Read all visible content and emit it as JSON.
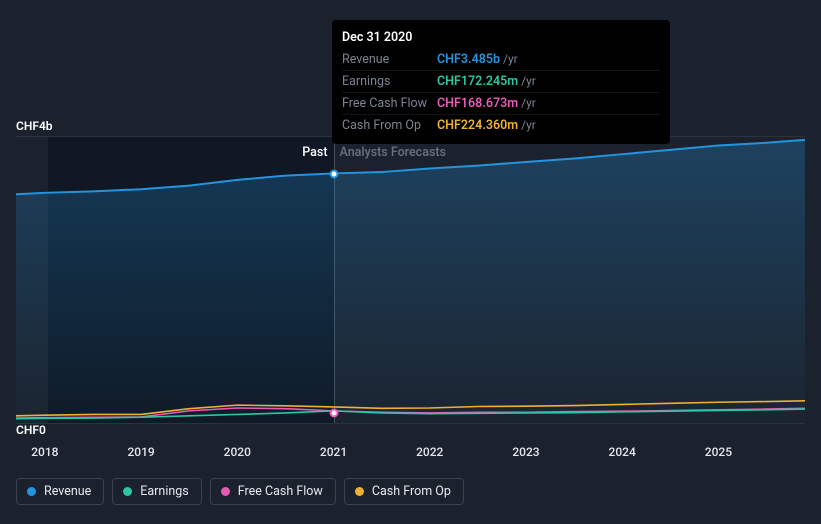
{
  "background_color": "#1b222d",
  "tooltip": {
    "date": "Dec 31 2020",
    "rows": [
      {
        "label": "Revenue",
        "value": "CHF3.485b",
        "unit": "/yr",
        "color": "#2394df"
      },
      {
        "label": "Earnings",
        "value": "CHF172.245m",
        "unit": "/yr",
        "color": "#2dc6a3"
      },
      {
        "label": "Free Cash Flow",
        "value": "CHF168.673m",
        "unit": "/yr",
        "color": "#e85ab8"
      },
      {
        "label": "Cash From Op",
        "value": "CHF224.360m",
        "unit": "/yr",
        "color": "#eeb133"
      }
    ]
  },
  "chart": {
    "type": "area-line",
    "background_color": "#1b222d",
    "past_shade_color": "#0f1824",
    "grid_color": "rgba(255,255,255,0.08)",
    "y_top_label": "CHF4b",
    "y_bottom_label": "CHF0",
    "past_label": "Past",
    "future_label": "Analysts Forecasts",
    "divider_year": 2021,
    "x_ticks": [
      2018,
      2019,
      2020,
      2021,
      2022,
      2023,
      2024,
      2025
    ],
    "x_domain": [
      2017.7,
      2025.9
    ],
    "y_domain": [
      0,
      4000
    ],
    "series": [
      {
        "name": "Revenue",
        "color": "#2394df",
        "fill": true,
        "width": 2,
        "points": [
          [
            2017.7,
            3200
          ],
          [
            2018,
            3220
          ],
          [
            2018.5,
            3240
          ],
          [
            2019,
            3270
          ],
          [
            2019.5,
            3320
          ],
          [
            2020,
            3400
          ],
          [
            2020.5,
            3460
          ],
          [
            2021,
            3490
          ],
          [
            2021.5,
            3510
          ],
          [
            2022,
            3560
          ],
          [
            2022.5,
            3600
          ],
          [
            2023,
            3650
          ],
          [
            2023.5,
            3700
          ],
          [
            2024,
            3760
          ],
          [
            2024.5,
            3820
          ],
          [
            2025,
            3880
          ],
          [
            2025.5,
            3920
          ],
          [
            2025.9,
            3960
          ]
        ]
      },
      {
        "name": "Cash From Op",
        "color": "#eeb133",
        "fill": false,
        "width": 1.6,
        "points": [
          [
            2017.7,
            100
          ],
          [
            2018,
            110
          ],
          [
            2018.5,
            120
          ],
          [
            2019,
            120
          ],
          [
            2019.5,
            200
          ],
          [
            2020,
            250
          ],
          [
            2020.5,
            240
          ],
          [
            2021,
            225
          ],
          [
            2021.5,
            205
          ],
          [
            2022,
            210
          ],
          [
            2022.5,
            230
          ],
          [
            2023,
            235
          ],
          [
            2023.5,
            245
          ],
          [
            2024,
            260
          ],
          [
            2024.5,
            275
          ],
          [
            2025,
            290
          ],
          [
            2025.5,
            300
          ],
          [
            2025.9,
            310
          ]
        ]
      },
      {
        "name": "Free Cash Flow",
        "color": "#e85ab8",
        "fill": false,
        "width": 1.6,
        "points": [
          [
            2017.7,
            70
          ],
          [
            2018,
            75
          ],
          [
            2018.5,
            80
          ],
          [
            2019,
            85
          ],
          [
            2019.5,
            170
          ],
          [
            2020,
            210
          ],
          [
            2020.5,
            200
          ],
          [
            2021,
            170
          ],
          [
            2021.5,
            150
          ],
          [
            2022,
            140
          ],
          [
            2022.5,
            150
          ],
          [
            2023,
            150
          ],
          [
            2023.5,
            160
          ],
          [
            2024,
            165
          ],
          [
            2024.5,
            175
          ],
          [
            2025,
            185
          ],
          [
            2025.5,
            195
          ],
          [
            2025.9,
            205
          ]
        ]
      },
      {
        "name": "Earnings",
        "color": "#2dc6a3",
        "fill": false,
        "width": 1.6,
        "points": [
          [
            2017.7,
            60
          ],
          [
            2018,
            65
          ],
          [
            2018.5,
            70
          ],
          [
            2019,
            80
          ],
          [
            2019.5,
            100
          ],
          [
            2020,
            120
          ],
          [
            2020.5,
            140
          ],
          [
            2021,
            170
          ],
          [
            2021.5,
            140
          ],
          [
            2022,
            130
          ],
          [
            2022.5,
            135
          ],
          [
            2023,
            140
          ],
          [
            2023.5,
            145
          ],
          [
            2024,
            155
          ],
          [
            2024.5,
            165
          ],
          [
            2025,
            175
          ],
          [
            2025.5,
            185
          ],
          [
            2025.9,
            195
          ]
        ]
      }
    ],
    "highlight_markers": [
      {
        "x": 2021,
        "y": 3490,
        "stroke": "#2394df"
      },
      {
        "x": 2021,
        "y": 170,
        "stroke": "#e85ab8"
      }
    ]
  },
  "legend": [
    {
      "label": "Revenue",
      "color": "#2394df"
    },
    {
      "label": "Earnings",
      "color": "#2dc6a3"
    },
    {
      "label": "Free Cash Flow",
      "color": "#e85ab8"
    },
    {
      "label": "Cash From Op",
      "color": "#eeb133"
    }
  ]
}
